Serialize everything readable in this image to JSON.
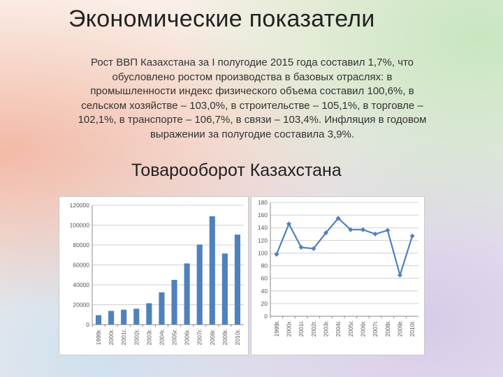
{
  "slide": {
    "title": "Экономические показатели",
    "body": "Рост ВВП Казахстана за I полугодие 2015 года составил 1,7%, что обусловлено ростом производства в базовых отраслях: в промышленности индекс физического объема составил 100,6%, в сельском хозяйстве – 103,0%, в строительстве – 105,1%, в торговле – 102,1%, в транспорте –  106,7%, в связи – 103,4%. Инфляция в годовом выражении за полугодие составила 3,9%.",
    "subtitle": "Товарооборот Казахстана"
  },
  "chart_data": [
    {
      "type": "bar",
      "categories": [
        "1999г.",
        "2000г.",
        "2001г.",
        "2002г.",
        "2003г.",
        "2004г.",
        "2005г.",
        "2006г.",
        "2007г.",
        "2008г.",
        "2009г.",
        "2010г."
      ],
      "values": [
        9500,
        13800,
        15000,
        16000,
        21500,
        32500,
        45000,
        61500,
        80500,
        109000,
        71500,
        90500
      ],
      "ylim": [
        0,
        120000
      ],
      "yticks": [
        0,
        20000,
        40000,
        60000,
        80000,
        100000,
        120000
      ],
      "grid": true,
      "color": "#4f81bd"
    },
    {
      "type": "line",
      "categories": [
        "1999г.",
        "2000г.",
        "2001г.",
        "2002г.",
        "2003г.",
        "2004г.",
        "2005г.",
        "2006г.",
        "2007г.",
        "2008г.",
        "2009г.",
        "2010г."
      ],
      "values": [
        98,
        146,
        109,
        107,
        132,
        155,
        137,
        137,
        130,
        136,
        65,
        127
      ],
      "ylim": [
        0,
        180
      ],
      "yticks": [
        0,
        20,
        40,
        60,
        80,
        100,
        120,
        140,
        160,
        180
      ],
      "grid": true,
      "color": "#4f81bd"
    }
  ]
}
